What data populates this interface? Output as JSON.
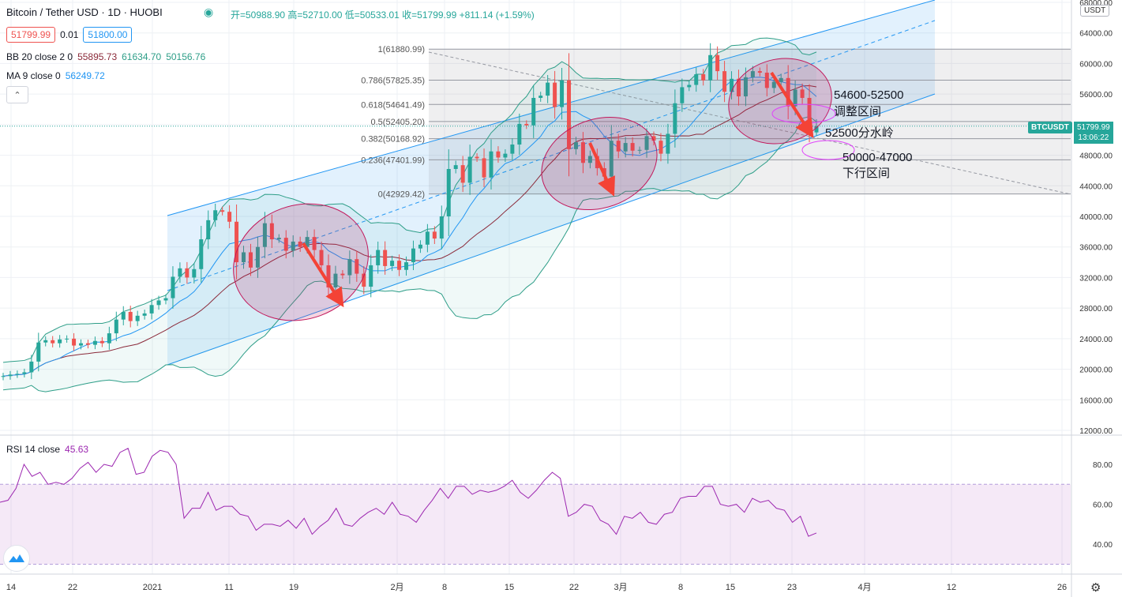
{
  "header": {
    "symbol_title": "Bitcoin / Tether USD · 1D · HUOBI",
    "ohlc": "开=50988.90  高=52710.00  低=50533.01  收=51799.99  +811.14 (+1.59%)",
    "bid": "51799.99",
    "spread": "0.01",
    "ask": "51800.00",
    "bb_label": "BB 20 close 2 0",
    "bb_values": [
      "55895.73",
      "61634.70",
      "50156.76"
    ],
    "ma_label": "MA 9 close 0",
    "ma_value": "56249.72",
    "rsi_label": "RSI 14 close",
    "rsi_value": "45.63"
  },
  "price_axis": {
    "currency": "USDT",
    "ticks": [
      "68000.00",
      "64000.00",
      "60000.00",
      "56000.00",
      "52000.00",
      "48000.00",
      "44000.00",
      "40000.00",
      "36000.00",
      "32000.00",
      "28000.00",
      "24000.00",
      "20000.00",
      "16000.00",
      "12000.00"
    ],
    "symbol_tag": "BTCUSDT",
    "last_price": "51799.99",
    "countdown": "13:06:22"
  },
  "rsi_axis": {
    "ticks": [
      "80.00",
      "60.00",
      "40.00"
    ]
  },
  "time_axis": {
    "ticks": [
      "14",
      "22",
      "2021",
      "11",
      "19",
      "2月",
      "8",
      "15",
      "22",
      "3月",
      "8",
      "15",
      "23",
      "4月",
      "12",
      "26"
    ]
  },
  "fib_levels": [
    {
      "label": "1(61880.99)",
      "price": 61880.99
    },
    {
      "label": "0.786(57825.35)",
      "price": 57825.35
    },
    {
      "label": "0.618(54641.49)",
      "price": 54641.49
    },
    {
      "label": "0.5(52405.20)",
      "price": 52405.2
    },
    {
      "label": "0.382(50168.92)",
      "price": 50168.92
    },
    {
      "label": "0.236(47401.99)",
      "price": 47401.99
    },
    {
      "label": "0(42929.42)",
      "price": 42929.42
    }
  ],
  "annotations": [
    {
      "line1": "54600-52500",
      "line2": "调整区间"
    },
    {
      "line1": "52500分水岭",
      "line2": ""
    },
    {
      "line1": "50000-47000",
      "line2": "下行区间"
    }
  ],
  "colors": {
    "up": "#26a69a",
    "down": "#ef5350",
    "bb_band": "#2e9e88",
    "bb_basis": "#8b2a3a",
    "ma": "#2196f3",
    "rsi": "#9c27b0",
    "channel": "#2196f3",
    "ellipse": "#c2185b",
    "arrow": "#f44336"
  },
  "chart_data": [
    {
      "type": "candlestick",
      "title": "Bitcoin / Tether USD · 1D · HUOBI",
      "ylabel": "USDT",
      "ylim": [
        12000,
        68000
      ],
      "x_ticks": [
        "14",
        "22",
        "2021",
        "11",
        "19",
        "2月",
        "8",
        "15",
        "22",
        "3月",
        "8",
        "15",
        "23",
        "4月",
        "12",
        "26"
      ],
      "last": {
        "open": 50988.9,
        "high": 52710.0,
        "low": 50533.01,
        "close": 51799.99,
        "change": 811.14,
        "change_pct": 1.59
      },
      "closes": [
        19100,
        19300,
        19400,
        19600,
        21000,
        23500,
        23800,
        23400,
        23900,
        24000,
        23100,
        23400,
        23200,
        23700,
        23400,
        24700,
        26500,
        27500,
        26300,
        27000,
        27300,
        28400,
        29000,
        29300,
        32100,
        33200,
        32000,
        33100,
        37000,
        39500,
        40800,
        40600,
        39300,
        34000,
        35300,
        33300,
        36000,
        39100,
        37000,
        37200,
        35500,
        36700,
        36000,
        37300,
        35600,
        33600,
        30700,
        32500,
        32300,
        34400,
        32500,
        30800,
        33600,
        35600,
        33500,
        34200,
        33000,
        34000,
        35800,
        36300,
        38000,
        37100,
        40000,
        46200,
        46700,
        44400,
        47800,
        47600,
        45100,
        48500,
        47700,
        48200,
        49400,
        52100,
        51900,
        55500,
        55800,
        57500,
        54300,
        57800,
        48800,
        49700,
        47000,
        47900,
        46300,
        45200,
        49900,
        48500,
        49600,
        48600,
        48700,
        50500,
        49900,
        48200,
        50800,
        54800,
        56900,
        57200,
        58600,
        57800,
        61100,
        59000,
        56300,
        58000,
        55700,
        58200,
        59000,
        58800,
        56800,
        57600,
        58100,
        54400,
        56600,
        55500,
        51500,
        51800
      ],
      "fib_levels": [
        61880.99,
        57825.35,
        54641.49,
        52405.2,
        50168.92,
        47401.99,
        42929.42
      ],
      "bb_last": {
        "basis": 55895.73,
        "upper": 61634.7,
        "lower": 50156.76
      },
      "ma9_last": 56249.72
    },
    {
      "type": "line",
      "title": "RSI 14 close",
      "ylim": [
        20,
        95
      ],
      "y_ticks": [
        80,
        60,
        40
      ],
      "series": [
        {
          "name": "RSI 14 close",
          "values": [
            61,
            62,
            68,
            80,
            74,
            76,
            70,
            71,
            70,
            73,
            78,
            81,
            76,
            80,
            79,
            86,
            88,
            75,
            76,
            84,
            87,
            86,
            80,
            53,
            58,
            58,
            66,
            57,
            59,
            59,
            55,
            54,
            47,
            50,
            50,
            49,
            52,
            48,
            53,
            45,
            49,
            52,
            58,
            50,
            49,
            53,
            56,
            58,
            55,
            61,
            55,
            54,
            51,
            57,
            62,
            68,
            63,
            69,
            69,
            65,
            67,
            66,
            67,
            69,
            72,
            66,
            63,
            67,
            72,
            76,
            73,
            54,
            56,
            60,
            59,
            52,
            50,
            45,
            54,
            53,
            56,
            51,
            50,
            55,
            56,
            63,
            64,
            64,
            69,
            69,
            60,
            59,
            60,
            56,
            63,
            61,
            62,
            58,
            57,
            51,
            54,
            44,
            45.63
          ]
        }
      ]
    }
  ]
}
